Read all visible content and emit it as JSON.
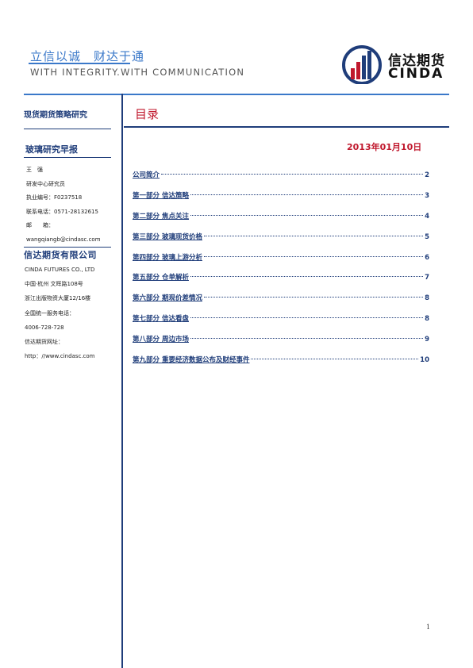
{
  "header": {
    "slogan_cn": "立信以诚　财达于通",
    "slogan_en": "WITH INTEGRITY.WITH COMMUNICATION",
    "logo_cn": "信达期货",
    "logo_en": "CINDA",
    "colors": {
      "accent_blue": "#3a78c9",
      "navy": "#1f3d7a",
      "red": "#c0182d"
    }
  },
  "sidebar": {
    "section_title": "现货期货策略研究",
    "report_type": "玻璃研究早报",
    "analyst_lines": [
      "王　强",
      "研发中心研究员",
      "执业编号：F0237518",
      "联系电话：0571-28132615",
      "邮　　箱：",
      "wangqiangb@cindasc.com"
    ],
    "company_name": "信达期货有限公司",
    "company_lines": [
      "CINDA FUTURES CO., LTD",
      "中国·杭州 文晖路108号",
      "浙江出版物资大厦12/16楼",
      "全国统一服务电话：",
      "4006-728-728",
      "信达期货网址：",
      "http：//www.cindasc.com"
    ]
  },
  "main": {
    "toc_title": "目录",
    "date": "2013年01月10日",
    "toc": [
      {
        "label": "公司简介",
        "page": "2"
      },
      {
        "label": "第一部分  信达策略",
        "page": "3"
      },
      {
        "label": "第二部分  焦点关注",
        "page": "4"
      },
      {
        "label": "第三部分  玻璃现货价格",
        "page": "5"
      },
      {
        "label": "第四部分  玻璃上游分析",
        "page": "6"
      },
      {
        "label": "第五部分  仓单解析",
        "page": "7"
      },
      {
        "label": "第六部分  期现价差情况",
        "page": "8"
      },
      {
        "label": "第七部分  信达看盘",
        "page": "8"
      },
      {
        "label": "第八部分  周边市场",
        "page": "9"
      },
      {
        "label": "第九部分  重要经济数据公布及财经事件",
        "page": "10"
      }
    ],
    "page_number": "1"
  }
}
